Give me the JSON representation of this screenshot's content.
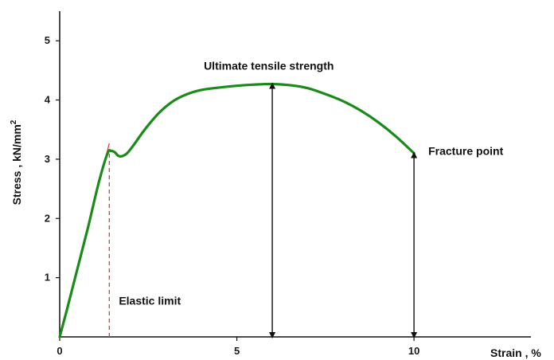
{
  "chart_data": {
    "type": "line",
    "title": "",
    "xlabel": "Strain , %",
    "ylabel": "Stress , kN/mm",
    "ylabel_superscript": "2",
    "xlim": [
      0,
      13.3
    ],
    "ylim": [
      0,
      5.5
    ],
    "x_ticks": [
      0,
      5,
      10
    ],
    "y_ticks": [
      1,
      2,
      3,
      4,
      5
    ],
    "grid": false,
    "legend": "none",
    "series": [
      {
        "color": "#1a8a1a",
        "x": [
          0,
          0.2,
          0.5,
          0.8,
          1.1,
          1.35,
          1.45,
          1.55,
          1.65,
          1.75,
          1.9,
          2.1,
          2.4,
          2.8,
          3.2,
          3.6,
          4.0,
          4.5,
          5.0,
          5.5,
          6.0,
          6.5,
          7.0,
          7.5,
          8.0,
          8.5,
          9.0,
          9.5,
          10.0
        ],
        "y": [
          0,
          0.45,
          1.15,
          1.85,
          2.6,
          3.1,
          3.14,
          3.12,
          3.06,
          3.05,
          3.1,
          3.25,
          3.5,
          3.78,
          3.98,
          4.1,
          4.17,
          4.21,
          4.24,
          4.26,
          4.27,
          4.25,
          4.2,
          4.1,
          3.98,
          3.82,
          3.62,
          3.38,
          3.1
        ]
      }
    ],
    "reference_lines": [
      {
        "style": "solid",
        "color": "#d94040",
        "x": [
          0,
          1.4
        ],
        "y": [
          0,
          3.27
        ]
      },
      {
        "style": "dashed",
        "color": "#d94040",
        "x": [
          1.4,
          1.4
        ],
        "y": [
          0,
          3.1
        ]
      }
    ],
    "annotations": [
      {
        "text": "Ultimate tensile strength",
        "x": 6.0,
        "y": 4.27,
        "arrow": "double"
      },
      {
        "text": "Fracture point",
        "x": 10.0,
        "y": 3.1,
        "arrow": "double"
      },
      {
        "text": "Elastic limit",
        "x": 1.4,
        "y": 0.6,
        "arrow": "none"
      }
    ]
  }
}
